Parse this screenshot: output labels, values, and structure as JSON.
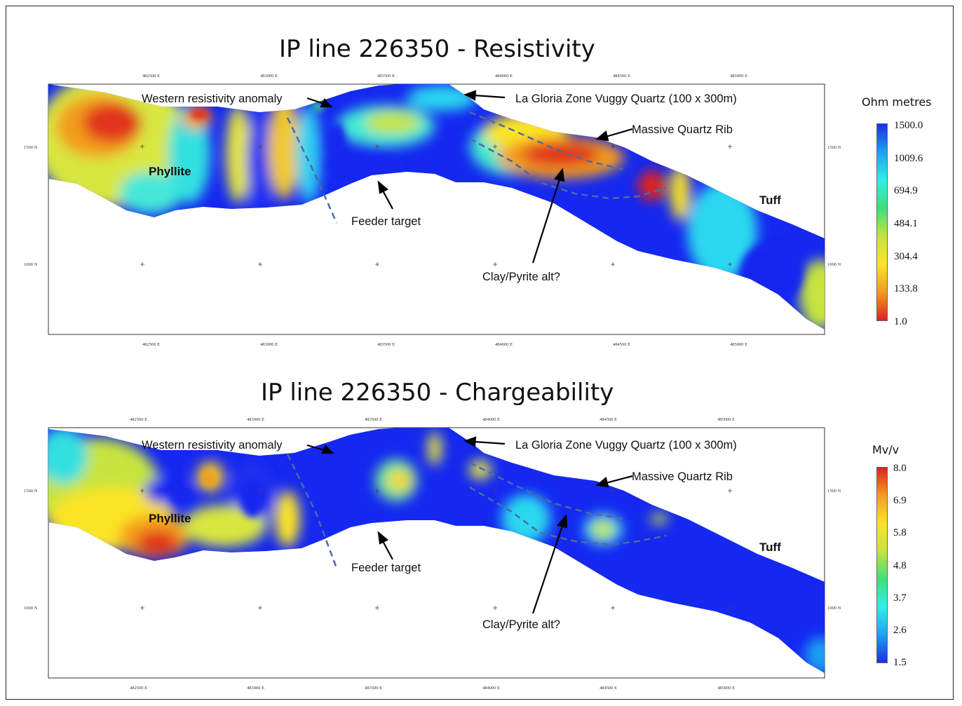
{
  "sections": [
    {
      "title": "IP line 226350 - Resistivity",
      "legend": {
        "title": "Ohm metres",
        "labels": [
          "1500.0",
          "1009.6",
          "694.9",
          "484.1",
          "304.4",
          "133.8",
          "1.0"
        ],
        "gradient": [
          "#1a30e8",
          "#1fa0f0",
          "#2ef0e8",
          "#3de07a",
          "#c6e43c",
          "#fbe428",
          "#f39c1f",
          "#e02020"
        ]
      },
      "annotations": {
        "western": "Western resistivity anomaly",
        "la_gloria": "La Gloria Zone Vuggy Quartz (100 x 300m)",
        "massive_quartz": "Massive Quartz Rib",
        "feeder": "Feeder target",
        "clay": "Clay/Pyrite alt?",
        "phyllite": "Phyllite",
        "tuff": "Tuff"
      }
    },
    {
      "title": "IP line 226350 - Chargeability",
      "legend": {
        "title": "Mv/v",
        "labels": [
          "8.0",
          "6.9",
          "5.8",
          "4.8",
          "3.7",
          "2.6",
          "1.5"
        ],
        "gradient": [
          "#e02020",
          "#f39c1f",
          "#fbe428",
          "#c6e43c",
          "#3de07a",
          "#2ef0e8",
          "#1fa0f0",
          "#1a30e8"
        ]
      },
      "annotations": {
        "western": "Western resistivity anomaly",
        "la_gloria": "La Gloria Zone Vuggy Quartz (100 x 300m)",
        "massive_quartz": "Massive Quartz Rib",
        "feeder": "Feeder target",
        "clay": "Clay/Pyrite alt?",
        "phyllite": "Phyllite",
        "tuff": "Tuff"
      }
    }
  ],
  "axis": {
    "eastings": [
      "482500 E",
      "483000 E",
      "483500 E",
      "484000 E",
      "484500 E",
      "485000 E"
    ],
    "northings": [
      "1500 N",
      "1000 N"
    ]
  }
}
